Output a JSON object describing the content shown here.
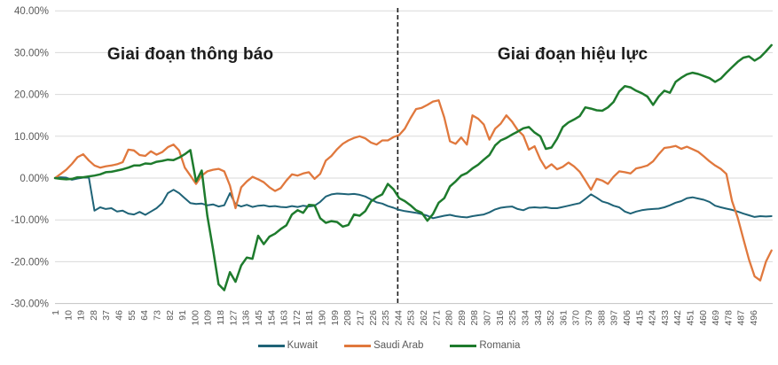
{
  "chart_data": {
    "type": "line",
    "title": "",
    "xlabel": "",
    "ylabel": "",
    "grid": true,
    "background": "#ffffff",
    "legend_position": "bottom",
    "x_range": [
      1,
      509
    ],
    "y_range": [
      -30,
      40
    ],
    "y_ticks": [
      {
        "label": "40.00%",
        "value": 40
      },
      {
        "label": "30.00%",
        "value": 30
      },
      {
        "label": "20.00%",
        "value": 20
      },
      {
        "label": "10.00%",
        "value": 10
      },
      {
        "label": "0.00%",
        "value": 0
      },
      {
        "label": "-10.00%",
        "value": -10
      },
      {
        "label": "-20.00%",
        "value": -20
      },
      {
        "label": "-30.00%",
        "value": -30
      }
    ],
    "x_ticks": [
      1,
      10,
      19,
      28,
      37,
      46,
      55,
      64,
      73,
      82,
      91,
      100,
      109,
      118,
      127,
      136,
      145,
      154,
      163,
      172,
      181,
      190,
      199,
      208,
      217,
      226,
      235,
      244,
      253,
      262,
      271,
      280,
      289,
      298,
      307,
      316,
      325,
      334,
      343,
      352,
      361,
      370,
      379,
      388,
      397,
      406,
      415,
      424,
      433,
      442,
      451,
      460,
      469,
      478,
      487,
      496
    ],
    "divider": {
      "t": 244,
      "style": "dashed",
      "color": "#1a1a1a"
    },
    "annotations": [
      {
        "text": "Giai đoạn thông báo",
        "t": 97,
        "value": 29.5
      },
      {
        "text": "Giai đoạn hiệu lực",
        "t": 368,
        "value": 29.5
      }
    ],
    "series": [
      {
        "name": "Kuwait",
        "color": "#1f6377",
        "width": 2,
        "t_start": 1,
        "t_step": 4,
        "values": [
          0,
          0.2,
          0.1,
          -0.4,
          -0.1,
          0.1,
          0.1,
          -7.8,
          -7,
          -7.4,
          -7.2,
          -8,
          -7.8,
          -8.5,
          -8.7,
          -8.1,
          -8.8,
          -8,
          -7.2,
          -6,
          -3.6,
          -2.8,
          -3.6,
          -4.8,
          -6,
          -6.2,
          -6.1,
          -6.5,
          -6.3,
          -6.8,
          -6.5,
          -3.6,
          -6.3,
          -6.8,
          -6.4,
          -6.9,
          -6.6,
          -6.5,
          -6.8,
          -6.7,
          -6.9,
          -7,
          -6.7,
          -6.9,
          -6.6,
          -6.8,
          -6.6,
          -5.7,
          -4.4,
          -3.9,
          -3.7,
          -3.8,
          -3.9,
          -3.8,
          -4,
          -4.4,
          -5.1,
          -5.8,
          -6.1,
          -6.7,
          -7.1,
          -7.6,
          -7.9,
          -8.1,
          -8.3,
          -8.6,
          -9,
          -9.6,
          -9.3,
          -9,
          -8.8,
          -9.1,
          -9.3,
          -9.4,
          -9.1,
          -8.9,
          -8.7,
          -8.2,
          -7.5,
          -7.1,
          -6.9,
          -6.8,
          -7.4,
          -7.7,
          -7.1,
          -7,
          -7.1,
          -7,
          -7.2,
          -7.2,
          -6.9,
          -6.6,
          -6.3,
          -6,
          -5,
          -3.9,
          -4.7,
          -5.6,
          -6,
          -6.6,
          -7,
          -8,
          -8.5,
          -8,
          -7.7,
          -7.5,
          -7.4,
          -7.3,
          -7,
          -6.5,
          -5.9,
          -5.5,
          -4.8,
          -4.6,
          -4.9,
          -5.2,
          -5.7,
          -6.6,
          -7,
          -7.3,
          -7.6,
          -8,
          -8.5,
          -8.9,
          -9.3,
          -9.1,
          -9.2,
          -9.1
        ]
      },
      {
        "name": "Saudi Arab",
        "color": "#e0783d",
        "width": 2.3,
        "t_start": 1,
        "t_step": 4,
        "values": [
          0,
          1,
          2,
          3.4,
          5,
          5.7,
          4.2,
          3,
          2.5,
          2.8,
          3,
          3.3,
          3.8,
          6.8,
          6.6,
          5.5,
          5.3,
          6.4,
          5.6,
          6.2,
          7.4,
          8,
          6.6,
          2.5,
          0.6,
          -1.4,
          0.6,
          1.6,
          2,
          2.2,
          1.6,
          -1.8,
          -7.2,
          -2.2,
          -0.8,
          0.3,
          -0.3,
          -1,
          -2.2,
          -3.1,
          -2.4,
          -0.6,
          0.9,
          0.6,
          1.1,
          1.4,
          -0.2,
          1,
          4.2,
          5.3,
          6.9,
          8.2,
          9,
          9.6,
          10,
          9.5,
          8.5,
          8,
          9,
          9,
          9.8,
          10.3,
          11.8,
          14.3,
          16.5,
          16.8,
          17.5,
          18.3,
          18.6,
          14.5,
          8.8,
          8.2,
          9.7,
          8,
          15,
          14.2,
          12.8,
          9.2,
          11.8,
          13,
          15,
          13.5,
          11.5,
          10.2,
          6.8,
          7.6,
          4.5,
          2.3,
          3.3,
          2.1,
          2.7,
          3.7,
          2.8,
          1.5,
          -0.6,
          -2.8,
          -0.2,
          -0.6,
          -1.4,
          0.3,
          1.6,
          1.4,
          1.1,
          2.3,
          2.6,
          3,
          4,
          5.7,
          7.2,
          7.4,
          7.7,
          7,
          7.5,
          6.9,
          6.3,
          5.2,
          4,
          3,
          2.2,
          1,
          -5.5,
          -9.5,
          -14.5,
          -19.5,
          -23.5,
          -24.5,
          -20,
          -17.3
        ]
      },
      {
        "name": "Romania",
        "color": "#1e7b2d",
        "width": 2.5,
        "t_start": 1,
        "t_step": 4,
        "values": [
          0,
          -0.2,
          -0.3,
          -0.2,
          0.2,
          0.2,
          0.4,
          0.6,
          0.9,
          1.4,
          1.5,
          1.8,
          2.1,
          2.5,
          3,
          3,
          3.5,
          3.4,
          3.9,
          4.1,
          4.4,
          4.3,
          4.9,
          5.7,
          6.7,
          -0.8,
          1.8,
          -9,
          -17,
          -25.4,
          -26.8,
          -22.5,
          -24.8,
          -20.9,
          -19,
          -19.3,
          -13.8,
          -15.8,
          -14,
          -13.3,
          -12.2,
          -11.3,
          -8.7,
          -7.7,
          -8.3,
          -6.4,
          -6.5,
          -9.6,
          -10.7,
          -10.3,
          -10.5,
          -11.6,
          -11.2,
          -8.7,
          -9,
          -7.9,
          -5.6,
          -4.6,
          -3.9,
          -1.4,
          -2.7,
          -4.8,
          -5.5,
          -6.5,
          -7.7,
          -8.3,
          -10.2,
          -8.6,
          -5.9,
          -4.8,
          -2,
          -0.8,
          0.6,
          1.2,
          2.3,
          3.2,
          4.4,
          5.5,
          7.8,
          9,
          9.6,
          10.4,
          11.1,
          11.9,
          12.2,
          10.9,
          10,
          7,
          7.3,
          9.4,
          12.2,
          13.3,
          14,
          14.8,
          16.9,
          16.6,
          16.2,
          16.1,
          16.9,
          18.2,
          20.7,
          22,
          21.7,
          20.9,
          20.3,
          19.5,
          17.5,
          19.5,
          20.9,
          20.4,
          23,
          24,
          24.8,
          25.2,
          24.9,
          24.4,
          23.9,
          23,
          23.8,
          25.2,
          26.5,
          27.8,
          28.8,
          29.1,
          28.1,
          28.9,
          30.3,
          31.8
        ]
      }
    ]
  },
  "legend": {
    "items": [
      {
        "label": "Kuwait"
      },
      {
        "label": "Saudi Arab"
      },
      {
        "label": "Romania"
      }
    ]
  }
}
